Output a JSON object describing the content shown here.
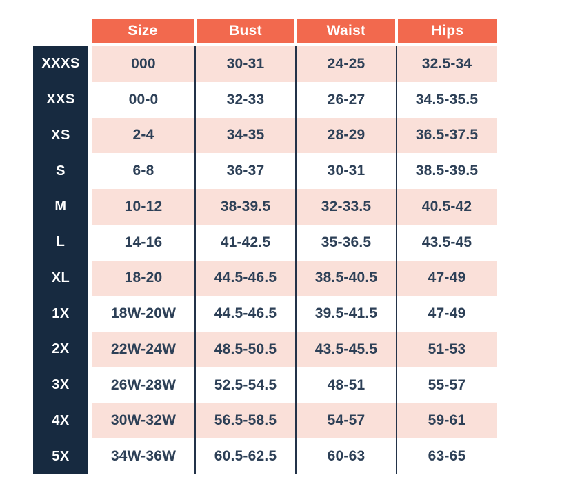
{
  "chart_data": {
    "type": "table",
    "columns": [
      "Size",
      "Bust",
      "Waist",
      "Hips"
    ],
    "rows": [
      {
        "label": "XXXS",
        "values": [
          "000",
          "30-31",
          "24-25",
          "32.5-34"
        ]
      },
      {
        "label": "XXS",
        "values": [
          "00-0",
          "32-33",
          "26-27",
          "34.5-35.5"
        ]
      },
      {
        "label": "XS",
        "values": [
          "2-4",
          "34-35",
          "28-29",
          "36.5-37.5"
        ]
      },
      {
        "label": "S",
        "values": [
          "6-8",
          "36-37",
          "30-31",
          "38.5-39.5"
        ]
      },
      {
        "label": "M",
        "values": [
          "10-12",
          "38-39.5",
          "32-33.5",
          "40.5-42"
        ]
      },
      {
        "label": "L",
        "values": [
          "14-16",
          "41-42.5",
          "35-36.5",
          "43.5-45"
        ]
      },
      {
        "label": "XL",
        "values": [
          "18-20",
          "44.5-46.5",
          "38.5-40.5",
          "47-49"
        ]
      },
      {
        "label": "1X",
        "values": [
          "18W-20W",
          "44.5-46.5",
          "39.5-41.5",
          "47-49"
        ]
      },
      {
        "label": "2X",
        "values": [
          "22W-24W",
          "48.5-50.5",
          "43.5-45.5",
          "51-53"
        ]
      },
      {
        "label": "3X",
        "values": [
          "26W-28W",
          "52.5-54.5",
          "48-51",
          "55-57"
        ]
      },
      {
        "label": "4X",
        "values": [
          "30W-32W",
          "56.5-58.5",
          "54-57",
          "59-61"
        ]
      },
      {
        "label": "5X",
        "values": [
          "34W-36W",
          "60.5-62.5",
          "60-63",
          "63-65"
        ]
      }
    ],
    "layout": {
      "row_striping": "alternating, first row pink",
      "first_stripe": "pink"
    }
  },
  "colors": {
    "header_bg": "#F2694E",
    "label_bg": "#172A40",
    "stripe_pink": "#FAE0D9",
    "row_white": "#FFFFFF",
    "text_dark": "#2D4057",
    "header_text": "#FFFFFF",
    "divider": "#233349",
    "page_bg": "#FFFFFF"
  }
}
